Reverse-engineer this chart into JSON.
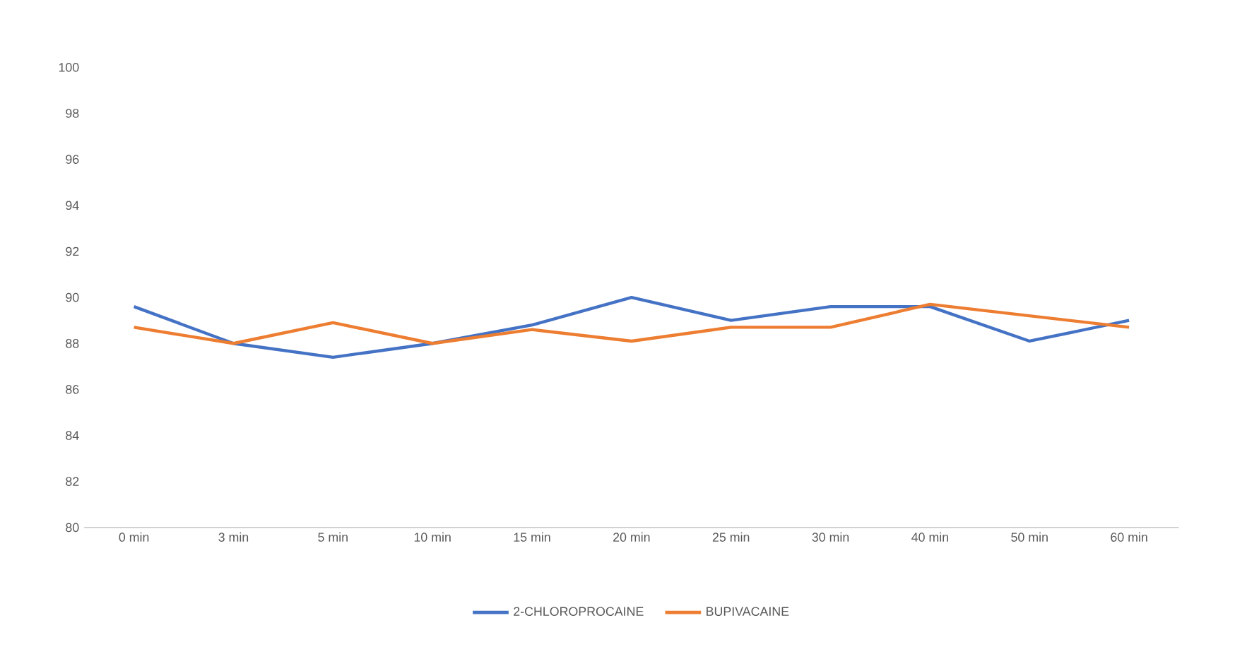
{
  "chart_data": {
    "type": "line",
    "categories": [
      "0 min",
      "3 min",
      "5 min",
      "10 min",
      "15 min",
      "20 min",
      "25 min",
      "30 min",
      "40 min",
      "50 min",
      "60 min"
    ],
    "series": [
      {
        "name": "2-CHLOROPROCAINE",
        "color": "#4472c4",
        "values": [
          89.6,
          88.0,
          87.4,
          88.0,
          88.8,
          90.0,
          89.0,
          89.6,
          89.6,
          88.1,
          89.0
        ]
      },
      {
        "name": "BUPIVACAINE",
        "color": "#ed7d31",
        "values": [
          88.7,
          88.0,
          88.9,
          88.0,
          88.6,
          88.1,
          88.7,
          88.7,
          89.7,
          89.2,
          88.7
        ]
      }
    ],
    "ylim": [
      80,
      100
    ],
    "yticks": [
      80,
      82,
      84,
      86,
      88,
      90,
      92,
      94,
      96,
      98,
      100
    ],
    "grid": false,
    "legend": "bottom",
    "marker": "none",
    "line_style": "solid"
  }
}
